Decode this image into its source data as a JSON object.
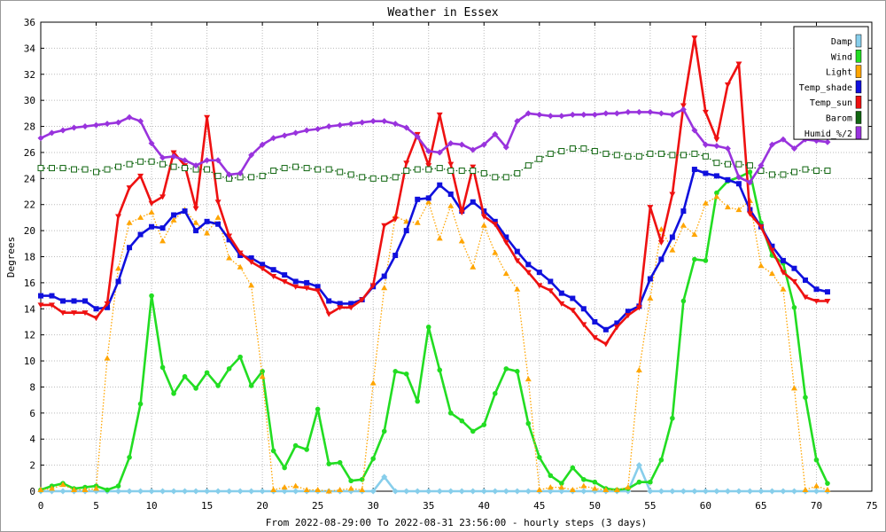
{
  "chart_data": {
    "type": "line",
    "title": "Weather in Essex",
    "xlabel": "From 2022-08-29:00 To 2022-08-31 23:56:00 - hourly steps (3 days)",
    "ylabel": "Degrees",
    "xlim": [
      0,
      75
    ],
    "ylim": [
      0,
      36
    ],
    "x_ticks": [
      0,
      5,
      10,
      15,
      20,
      25,
      30,
      35,
      40,
      45,
      50,
      55,
      60,
      65,
      70,
      75
    ],
    "y_ticks": [
      0,
      2,
      4,
      6,
      8,
      10,
      12,
      14,
      16,
      18,
      20,
      22,
      24,
      26,
      28,
      30,
      32,
      34,
      36
    ],
    "grid": true,
    "legend_position": "top-right",
    "series": [
      {
        "name": "Damp",
        "color": "#87ceeb",
        "marker": "diamond",
        "line": "solid",
        "values": [
          0,
          0,
          0,
          0,
          0,
          0,
          0,
          0,
          0,
          0,
          0,
          0,
          0,
          0,
          0,
          0,
          0,
          0,
          0,
          0,
          0,
          0,
          0,
          0,
          0,
          0,
          0,
          0,
          0,
          0,
          0,
          1.1,
          0,
          0,
          0,
          0,
          0,
          0,
          0,
          0,
          0,
          0,
          0,
          0,
          0,
          0,
          0,
          0,
          0,
          0,
          0,
          0,
          0,
          0,
          2.0,
          0,
          0,
          0,
          0,
          0,
          0,
          0,
          0,
          0,
          0,
          0,
          0,
          0,
          0,
          0,
          0,
          0
        ]
      },
      {
        "name": "Wind",
        "color": "#22dd22",
        "marker": "circle",
        "line": "solid",
        "values": [
          0.1,
          0.4,
          0.6,
          0.2,
          0.3,
          0.4,
          0.1,
          0.4,
          2.6,
          6.7,
          15.0,
          9.5,
          7.5,
          8.8,
          7.9,
          9.1,
          8.1,
          9.4,
          10.3,
          8.1,
          9.2,
          3.1,
          1.8,
          3.5,
          3.2,
          6.3,
          2.1,
          2.2,
          0.8,
          0.9,
          2.5,
          4.6,
          9.2,
          9.0,
          6.9,
          12.6,
          9.3,
          6.0,
          5.4,
          4.6,
          5.1,
          7.5,
          9.4,
          9.2,
          5.2,
          2.6,
          1.2,
          0.6,
          1.8,
          0.9,
          0.7,
          0.2,
          0.1,
          0.2,
          0.7,
          0.7,
          2.4,
          5.6,
          14.6,
          17.8,
          17.7,
          22.9,
          23.8,
          24.1,
          24.5,
          20.6,
          18.1,
          17.5,
          14.1,
          7.2,
          2.4,
          0.6
        ]
      },
      {
        "name": "Light",
        "color": "#ffa500",
        "marker": "triangle",
        "line": "dotted",
        "values": [
          0.1,
          0.2,
          0.5,
          0.1,
          0.1,
          0.2,
          10.2,
          17.1,
          20.6,
          21.0,
          21.4,
          19.2,
          20.8,
          21.6,
          20.6,
          19.8,
          21.0,
          17.9,
          17.2,
          15.8,
          8.8,
          0.1,
          0.3,
          0.4,
          0.1,
          0.1,
          0.0,
          0.1,
          0.2,
          0.1,
          8.3,
          15.6,
          21.1,
          20.7,
          20.6,
          22.2,
          19.4,
          21.9,
          19.2,
          17.2,
          20.4,
          18.3,
          16.7,
          15.5,
          8.6,
          0.1,
          0.3,
          0.3,
          0.1,
          0.4,
          0.2,
          0.1,
          0.1,
          0.3,
          9.3,
          14.8,
          20.1,
          18.5,
          20.4,
          19.7,
          22.1,
          22.6,
          21.8,
          21.6,
          22.3,
          17.3,
          16.7,
          15.5,
          7.9,
          0.1,
          0.4,
          0.1
        ]
      },
      {
        "name": "Temp_shade",
        "color": "#1010dd",
        "marker": "square",
        "line": "solid",
        "values": [
          15.0,
          15.0,
          14.6,
          14.6,
          14.6,
          14.0,
          14.1,
          16.1,
          18.7,
          19.7,
          20.3,
          20.2,
          21.2,
          21.5,
          20.0,
          20.7,
          20.5,
          19.3,
          18.1,
          17.9,
          17.4,
          17.0,
          16.6,
          16.1,
          16.0,
          15.7,
          14.6,
          14.4,
          14.4,
          14.7,
          15.7,
          16.5,
          18.1,
          20.0,
          22.4,
          22.5,
          23.5,
          22.8,
          21.5,
          22.2,
          21.5,
          20.7,
          19.5,
          18.4,
          17.4,
          16.8,
          16.1,
          15.2,
          14.8,
          14.0,
          13.0,
          12.4,
          12.9,
          13.8,
          14.2,
          16.3,
          17.8,
          19.5,
          21.5,
          24.7,
          24.4,
          24.2,
          23.9,
          23.6,
          21.6,
          20.3,
          18.8,
          17.7,
          17.1,
          16.2,
          15.5,
          15.3
        ]
      },
      {
        "name": "Temp_sun",
        "color": "#ee1111",
        "marker": "triangle-down",
        "line": "solid",
        "values": [
          14.3,
          14.3,
          13.7,
          13.7,
          13.7,
          13.3,
          14.4,
          21.1,
          23.3,
          24.2,
          22.1,
          22.6,
          26.0,
          25.0,
          21.7,
          28.7,
          22.2,
          19.6,
          18.3,
          17.6,
          17.1,
          16.5,
          16.1,
          15.7,
          15.6,
          15.4,
          13.6,
          14.1,
          14.1,
          14.7,
          15.8,
          20.4,
          20.9,
          25.2,
          27.4,
          25.0,
          28.9,
          25.1,
          21.4,
          24.9,
          21.1,
          20.5,
          19.1,
          17.7,
          16.8,
          15.8,
          15.4,
          14.4,
          13.9,
          12.8,
          11.8,
          11.3,
          12.6,
          13.5,
          14.1,
          21.8,
          19.1,
          22.8,
          29.6,
          34.8,
          29.1,
          27.0,
          31.2,
          32.8,
          21.3,
          20.3,
          18.5,
          16.8,
          16.1,
          14.9,
          14.6,
          14.6
        ]
      },
      {
        "name": "Barom",
        "color": "#116611",
        "marker": "open-square",
        "line": "dotted",
        "values": [
          24.8,
          24.8,
          24.8,
          24.7,
          24.7,
          24.5,
          24.7,
          24.9,
          25.1,
          25.3,
          25.3,
          25.1,
          24.9,
          24.8,
          24.7,
          24.7,
          24.2,
          24.0,
          24.1,
          24.1,
          24.2,
          24.6,
          24.8,
          24.9,
          24.8,
          24.7,
          24.7,
          24.5,
          24.3,
          24.1,
          24.0,
          24.0,
          24.1,
          24.6,
          24.7,
          24.7,
          24.8,
          24.6,
          24.6,
          24.6,
          24.4,
          24.1,
          24.1,
          24.4,
          25.0,
          25.5,
          25.9,
          26.1,
          26.3,
          26.3,
          26.1,
          25.9,
          25.8,
          25.7,
          25.7,
          25.9,
          25.9,
          25.8,
          25.8,
          25.9,
          25.7,
          25.2,
          25.1,
          25.1,
          25.0,
          24.6,
          24.3,
          24.3,
          24.5,
          24.7,
          24.6,
          24.6
        ]
      },
      {
        "name": "Humid_%/2",
        "color": "#9933dd",
        "marker": "diamond",
        "line": "solid",
        "values": [
          27.1,
          27.5,
          27.7,
          27.9,
          28.0,
          28.1,
          28.2,
          28.3,
          28.7,
          28.4,
          26.7,
          25.6,
          25.7,
          25.4,
          25.0,
          25.4,
          25.4,
          24.3,
          24.4,
          25.8,
          26.6,
          27.1,
          27.3,
          27.5,
          27.7,
          27.8,
          28.0,
          28.1,
          28.2,
          28.3,
          28.4,
          28.4,
          28.2,
          27.9,
          27.2,
          26.1,
          26.0,
          26.7,
          26.6,
          26.2,
          26.6,
          27.4,
          26.4,
          28.4,
          29.0,
          28.9,
          28.8,
          28.8,
          28.9,
          28.9,
          28.9,
          29.0,
          29.0,
          29.1,
          29.1,
          29.1,
          29.0,
          28.9,
          29.3,
          27.7,
          26.6,
          26.5,
          26.3,
          24.1,
          23.7,
          25.0,
          26.6,
          27.0,
          26.3,
          27.0,
          26.9,
          26.8
        ]
      }
    ]
  }
}
